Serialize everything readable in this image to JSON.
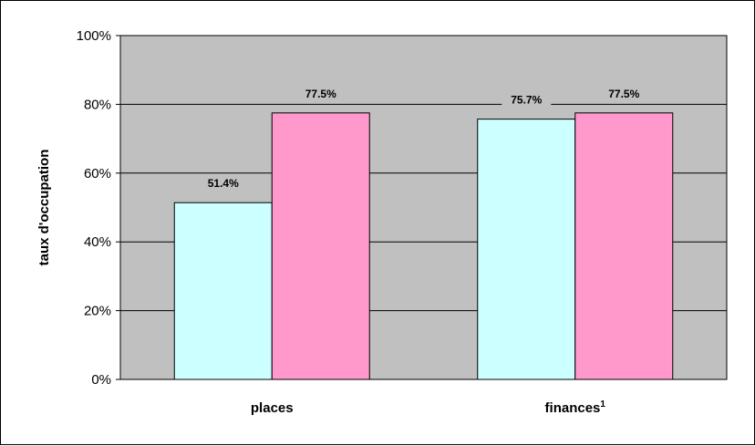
{
  "chart_data": {
    "type": "bar",
    "title": "",
    "xlabel": "",
    "ylabel": "taux d'occupation",
    "ylim": [
      0,
      100
    ],
    "yticks": [
      "0%",
      "20%",
      "40%",
      "60%",
      "80%",
      "100%"
    ],
    "ytick_values": [
      0,
      20,
      40,
      60,
      80,
      100
    ],
    "grid": true,
    "legend": "none",
    "categories": [
      "places",
      "finances"
    ],
    "category_superscripts": [
      "",
      "1"
    ],
    "series": [
      {
        "values": [
          51.4,
          75.7
        ],
        "labels": [
          "51.4%",
          "75.7%"
        ],
        "color": "#ccffff"
      },
      {
        "values": [
          77.5,
          77.5
        ],
        "labels": [
          "77.5%",
          "77.5%"
        ],
        "color": "#ff99cc"
      }
    ],
    "plot_background": "#c0c0c0"
  }
}
